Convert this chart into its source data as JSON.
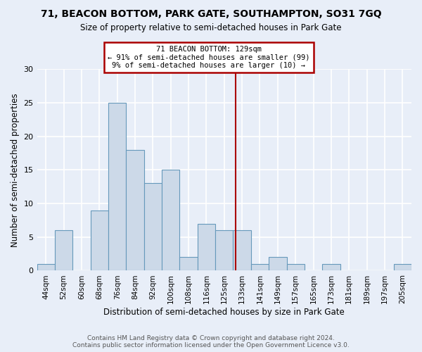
{
  "title1": "71, BEACON BOTTOM, PARK GATE, SOUTHAMPTON, SO31 7GQ",
  "title2": "Size of property relative to semi-detached houses in Park Gate",
  "xlabel": "Distribution of semi-detached houses by size in Park Gate",
  "ylabel": "Number of semi-detached properties",
  "bin_labels": [
    "44sqm",
    "52sqm",
    "60sqm",
    "68sqm",
    "76sqm",
    "84sqm",
    "92sqm",
    "100sqm",
    "108sqm",
    "116sqm",
    "125sqm",
    "133sqm",
    "141sqm",
    "149sqm",
    "157sqm",
    "165sqm",
    "173sqm",
    "181sqm",
    "189sqm",
    "197sqm",
    "205sqm"
  ],
  "bar_heights": [
    1,
    6,
    0,
    9,
    25,
    18,
    13,
    15,
    2,
    7,
    6,
    6,
    1,
    2,
    1,
    0,
    1,
    0,
    0,
    0,
    1
  ],
  "bar_color": "#ccd9e8",
  "bar_edge_color": "#6699bb",
  "vline_x_index": 10.625,
  "vline_color": "#aa0000",
  "box_edge_color": "#aa0000",
  "annotation_title": "71 BEACON BOTTOM: 129sqm",
  "annotation_line1": "← 91% of semi-detached houses are smaller (99)",
  "annotation_line2": "9% of semi-detached houses are larger (10) →",
  "ylim": [
    0,
    30
  ],
  "yticks": [
    0,
    5,
    10,
    15,
    20,
    25,
    30
  ],
  "footer": "Contains HM Land Registry data © Crown copyright and database right 2024.\nContains public sector information licensed under the Open Government Licence v3.0.",
  "background_color": "#e8eef8",
  "grid_color": "#ffffff"
}
